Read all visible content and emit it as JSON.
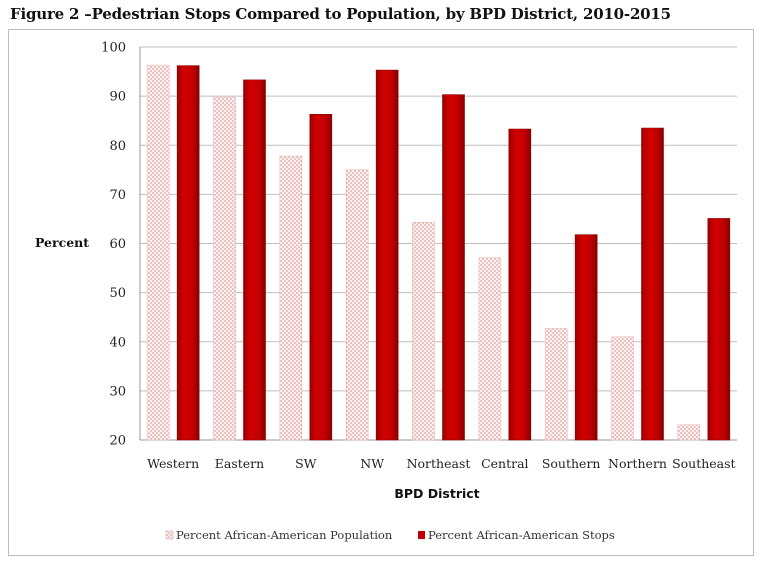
{
  "figure": {
    "title": "Figure 2 –Pedestrian Stops Compared to Population, by BPD District, 2010-2015"
  },
  "chart_data": {
    "type": "bar",
    "title": "Figure 2 –Pedestrian Stops Compared to Population, by BPD District, 2010-2015",
    "xlabel": "BPD District",
    "ylabel": "Percent",
    "ylim": [
      20,
      100
    ],
    "yticks": [
      20,
      30,
      40,
      50,
      60,
      70,
      80,
      90,
      100
    ],
    "grid": true,
    "legend_position": "bottom",
    "categories": [
      "Western",
      "Eastern",
      "SW",
      "NW",
      "Northeast",
      "Central",
      "Southern",
      "Northern",
      "Southeast"
    ],
    "series": [
      {
        "name": "Percent African-American Population",
        "color": "#e8b4b4",
        "pattern": "dotted",
        "values": [
          96.3,
          89.8,
          77.8,
          75.0,
          64.3,
          57.1,
          42.7,
          41.0,
          23.1
        ]
      },
      {
        "name": "Percent African-American Stops",
        "color": "#c00000",
        "pattern": "solid",
        "values": [
          96.2,
          93.3,
          86.3,
          95.3,
          90.3,
          83.3,
          61.8,
          83.5,
          65.1
        ]
      }
    ]
  }
}
